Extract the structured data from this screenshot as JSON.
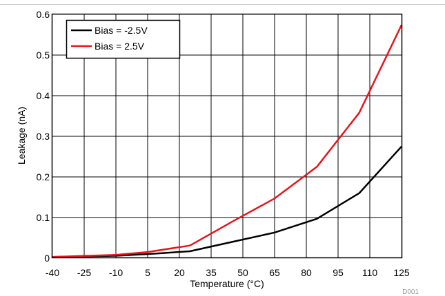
{
  "chart_data": {
    "type": "line",
    "xlabel": "Temperature (°C)",
    "ylabel": "Leakage (nA)",
    "x_categories": [
      "-40",
      "-25",
      "-10",
      "5",
      "20",
      "35",
      "50",
      "65",
      "80",
      "95",
      "110",
      "125"
    ],
    "ylim": [
      0,
      0.6
    ],
    "y_ticks": [
      "0",
      "0.1",
      "0.2",
      "0.3",
      "0.4",
      "0.5",
      "0.6"
    ],
    "grid": true,
    "legend_position": "top-left",
    "series": [
      {
        "name": "Bias = -2.5V",
        "color": "#000000",
        "points": [
          [
            -40,
            0.003
          ],
          [
            -10,
            0.006
          ],
          [
            5,
            0.01
          ],
          [
            25,
            0.017
          ],
          [
            45,
            0.04
          ],
          [
            65,
            0.063
          ],
          [
            85,
            0.097
          ],
          [
            105,
            0.16
          ],
          [
            125,
            0.275
          ]
        ]
      },
      {
        "name": "Bias = 2.5V",
        "color": "#e8141c",
        "points": [
          [
            -40,
            0.003
          ],
          [
            -10,
            0.008
          ],
          [
            5,
            0.015
          ],
          [
            25,
            0.031
          ],
          [
            45,
            0.09
          ],
          [
            65,
            0.147
          ],
          [
            85,
            0.225
          ],
          [
            105,
            0.358
          ],
          [
            125,
            0.574
          ]
        ]
      }
    ]
  },
  "footer_code": "D001"
}
